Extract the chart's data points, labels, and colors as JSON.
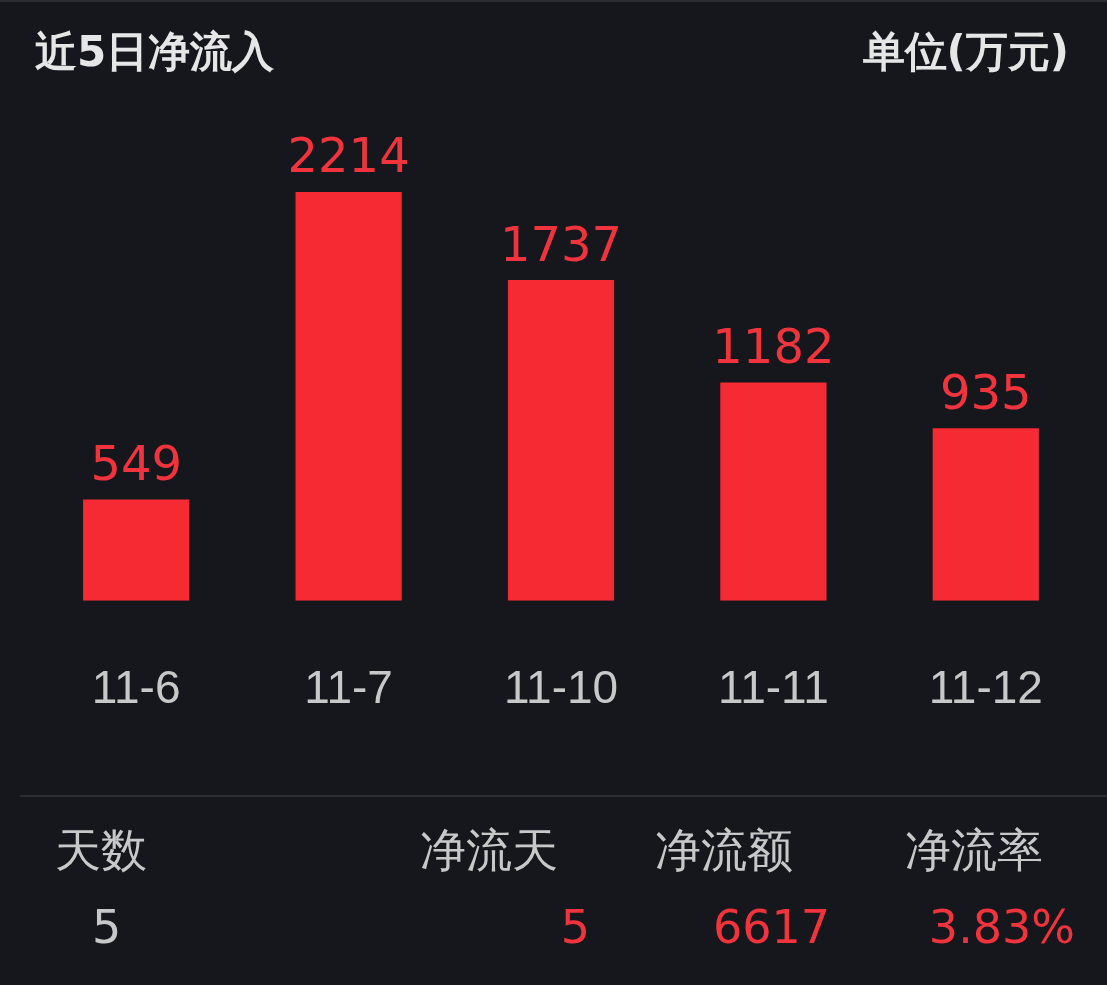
{
  "chart_data": {
    "type": "bar",
    "title": "近5日净流入",
    "subtitle": "单位(万元)",
    "categories": [
      "11-6",
      "11-7",
      "11-10",
      "11-11",
      "11-12"
    ],
    "values": [
      549,
      2214,
      1737,
      1182,
      935
    ],
    "color": "#f52a33",
    "data_labels": true,
    "annotations": [
      "天数",
      "5",
      "净流天",
      "5",
      "净流额",
      "6617",
      "净流率",
      "3.83%"
    ]
  }
}
